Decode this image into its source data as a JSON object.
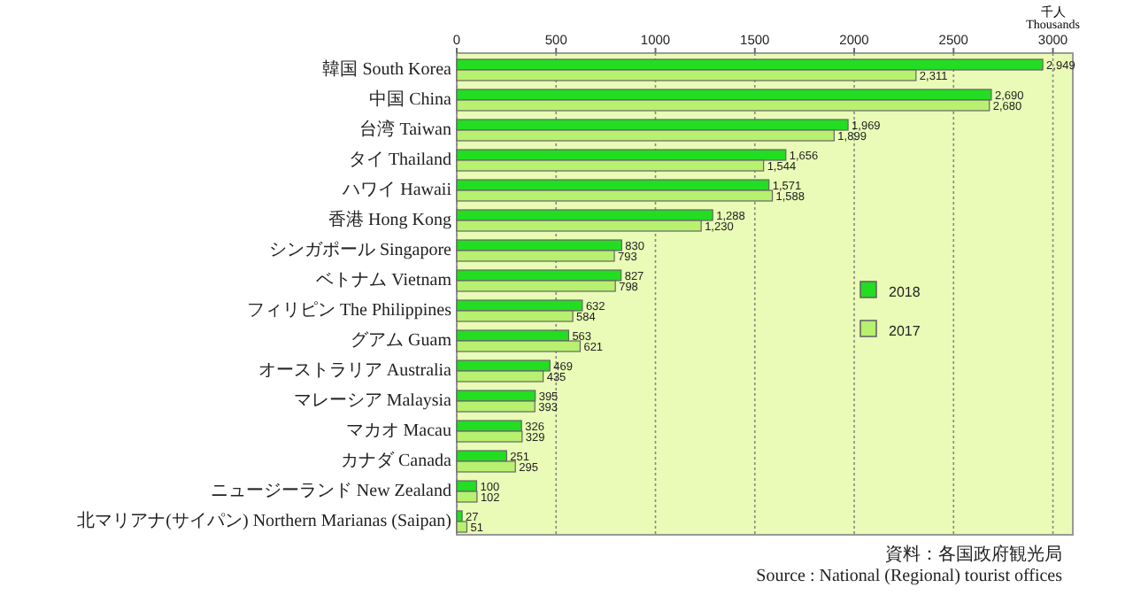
{
  "chart_data": {
    "type": "bar",
    "orientation": "horizontal",
    "xlabel": "千人 Thousands",
    "categories": [
      "韓国 South Korea",
      "中国 China",
      "台湾 Taiwan",
      "タイ Thailand",
      "ハワイ Hawaii",
      "香港 Hong Kong",
      "シンガポール Singapore",
      "ベトナム Vietnam",
      "フィリピン The Philippines",
      "グアム Guam",
      "オーストラリア Australia",
      "マレーシア Malaysia",
      "マカオ Macau",
      "カナダ Canada",
      "ニュージーランド New Zealand",
      "北マリアナ(サイパン) Northern Marianas (Saipan)"
    ],
    "series": [
      {
        "name": "2018",
        "color": "#22dd22",
        "values": [
          2949,
          2690,
          1969,
          1656,
          1571,
          1288,
          830,
          827,
          632,
          563,
          469,
          395,
          326,
          251,
          100,
          27
        ],
        "value_labels": [
          "2,949",
          "2,690",
          "1,969",
          "1,656",
          "1,571",
          "1,288",
          "830",
          "827",
          "632",
          "563",
          "469",
          "395",
          "326",
          "251",
          "100",
          "27"
        ]
      },
      {
        "name": "2017",
        "color": "#b8f070",
        "values": [
          2311,
          2680,
          1899,
          1544,
          1588,
          1230,
          793,
          798,
          584,
          621,
          435,
          393,
          329,
          295,
          102,
          51
        ],
        "value_labels": [
          "2,311",
          "2,680",
          "1,899",
          "1,544",
          "1,588",
          "1,230",
          "793",
          "798",
          "584",
          "621",
          "435",
          "393",
          "329",
          "295",
          "102",
          "51"
        ]
      }
    ],
    "xlim": [
      0,
      3100
    ],
    "xticks": [
      0,
      500,
      1000,
      1500,
      2000,
      2500,
      3000
    ],
    "grid": "x",
    "legend": "right",
    "annotations": [
      "資料：各国政府観光局",
      "Source : National (Regional) tourist offices"
    ]
  }
}
